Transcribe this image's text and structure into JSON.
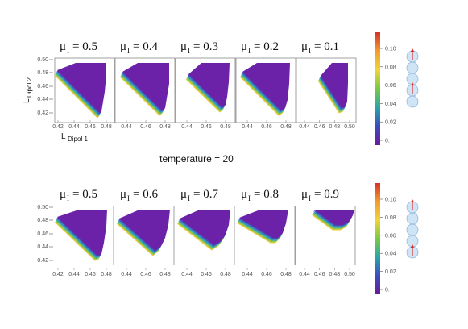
{
  "colors": {
    "fill": "#6b22a8",
    "edge": [
      "#e8c93a",
      "#95c84a",
      "#3fb2a2",
      "#3a86c8",
      "#4b4ab4"
    ],
    "frame": "#8a8a8a",
    "bead": "#cfe4f5",
    "bead_stroke": "#8ab3d6",
    "arrow": "#e02020",
    "colorbar": [
      "#6a1b9a",
      "#3b4cc0",
      "#2aa5a5",
      "#7ac943",
      "#f0d43a",
      "#f39c2d",
      "#d73027"
    ]
  },
  "labels": {
    "temperature": "temperature = 20",
    "ylabel_main": "L",
    "ylabel_sub": "Dipol 2",
    "xlabel_main": "L",
    "xlabel_sub": "Dipol 1",
    "mu_symbol": "μ",
    "mu_sub": "I"
  },
  "chart_data": [
    {
      "type": "area",
      "row": "top",
      "panels": [
        {
          "mu": "0.5",
          "limits": [
            0.42,
            0.48
          ],
          "xticks": [
            "0.42",
            "0.44",
            "0.46",
            "0.48"
          ]
        },
        {
          "mu": "0.4",
          "limits": [
            0.42,
            0.48
          ],
          "xticks": [
            "0.44",
            "0.46",
            "0.48"
          ]
        },
        {
          "mu": "0.3",
          "limits": [
            0.42,
            0.48
          ],
          "xticks": [
            "0.44",
            "0.46",
            "0.48"
          ]
        },
        {
          "mu": "0.2",
          "limits": [
            0.42,
            0.48
          ],
          "xticks": [
            "0.44",
            "0.46",
            "0.48"
          ]
        },
        {
          "mu": "0.1",
          "limits": [
            0.42,
            0.5
          ],
          "xticks": [
            "0.44",
            "0.46",
            "0.48",
            "0.50"
          ]
        }
      ],
      "yticks": [
        "0.50",
        "0.48",
        "0.46",
        "0.44",
        "0.42"
      ],
      "colorbar_ticks": [
        "0.10",
        "0.08",
        "0.06",
        "0.04",
        "0.02",
        "0."
      ],
      "arrow_beads": [
        0,
        3
      ]
    },
    {
      "type": "area",
      "row": "bottom",
      "panels": [
        {
          "mu": "0.5",
          "limits": [
            0.42,
            0.48
          ],
          "xticks": [
            "0.42",
            "0.44",
            "0.46",
            "0.48"
          ]
        },
        {
          "mu": "0.6",
          "limits": [
            0.42,
            0.48
          ],
          "xticks": [
            "0.44",
            "0.46",
            "0.48"
          ]
        },
        {
          "mu": "0.7",
          "limits": [
            0.42,
            0.48
          ],
          "xticks": [
            "0.44",
            "0.46",
            "0.48"
          ]
        },
        {
          "mu": "0.8",
          "limits": [
            0.42,
            0.48
          ],
          "xticks": [
            "0.44",
            "0.46",
            "0.48"
          ]
        },
        {
          "mu": "0.9",
          "limits": [
            0.44,
            0.5
          ],
          "xticks": [
            "0.44",
            "0.46",
            "0.48",
            "0.50"
          ]
        }
      ],
      "yticks": [
        "0.50",
        "0.48",
        "0.46",
        "0.44",
        "0.42"
      ],
      "colorbar_ticks": [
        "0.10",
        "0.08",
        "0.06",
        "0.04",
        "0.02",
        "0."
      ],
      "arrow_beads": [
        0,
        4
      ]
    }
  ]
}
